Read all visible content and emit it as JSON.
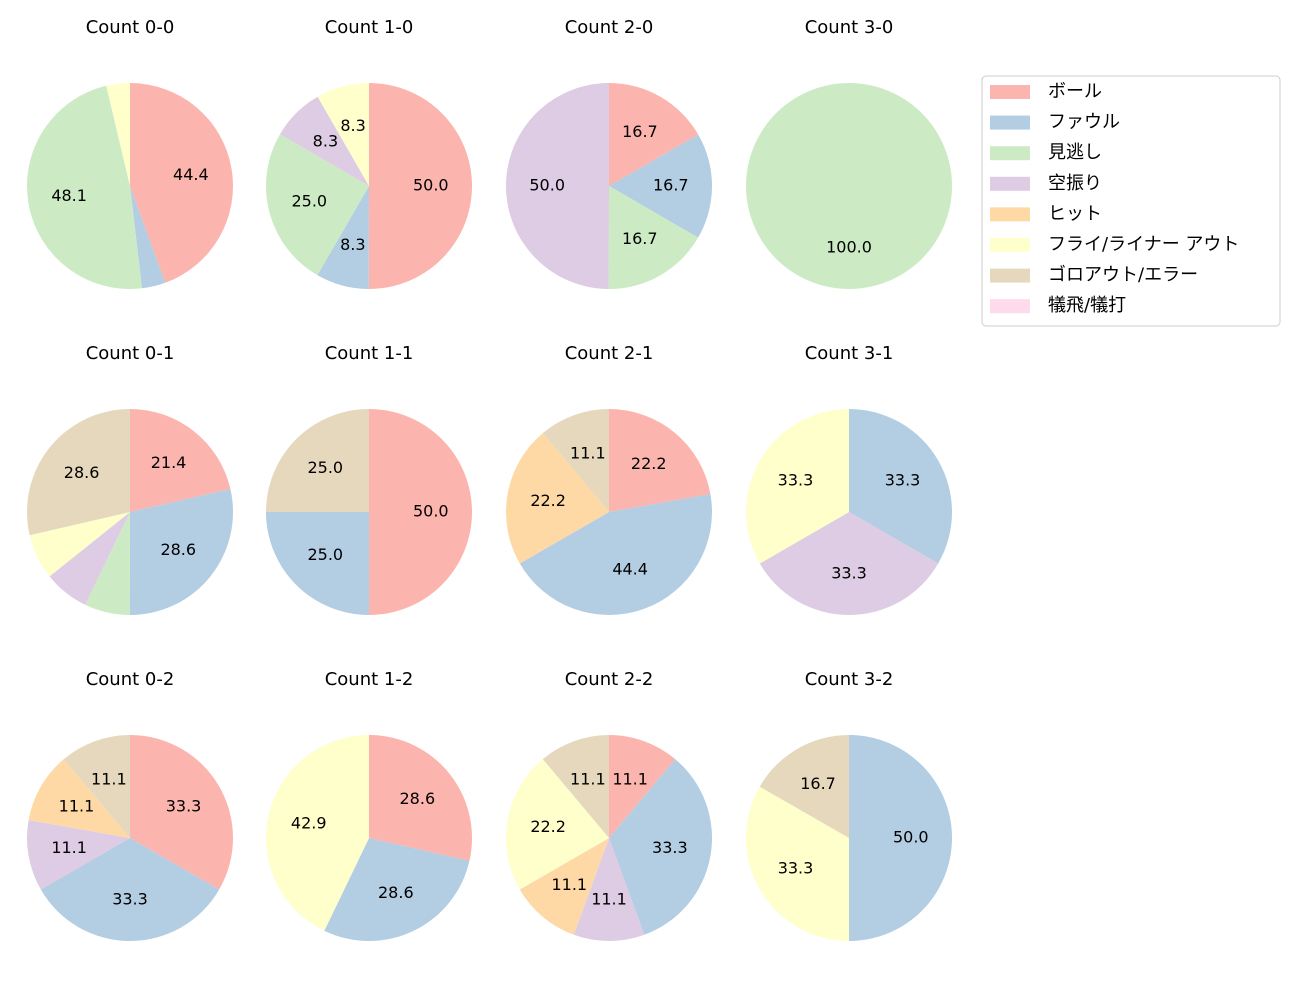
{
  "chart_data": [
    {
      "type": "pie",
      "title": "Count 0-0",
      "values": [
        44.4,
        3.7,
        48.1,
        0,
        0,
        3.7,
        0,
        0
      ],
      "value_labels": [
        "44.4",
        null,
        "48.1",
        null,
        null,
        null,
        null,
        null
      ]
    },
    {
      "type": "pie",
      "title": "Count 1-0",
      "values": [
        50,
        8.3,
        25,
        8.3,
        0,
        8.3,
        0,
        0
      ],
      "value_labels": [
        "50.0",
        "8.3",
        "25.0",
        "8.3",
        null,
        "8.3",
        null,
        null
      ]
    },
    {
      "type": "pie",
      "title": "Count 2-0",
      "values": [
        16.7,
        16.7,
        16.7,
        50,
        0,
        0,
        0,
        0
      ],
      "value_labels": [
        "16.7",
        "16.7",
        "16.7",
        "50.0",
        null,
        null,
        null,
        null
      ]
    },
    {
      "type": "pie",
      "title": "Count 3-0",
      "values": [
        0,
        0,
        100,
        0,
        0,
        0,
        0,
        0
      ],
      "value_labels": [
        null,
        null,
        "100.0",
        null,
        null,
        null,
        null,
        null
      ]
    },
    {
      "type": "pie",
      "title": "Count 0-1",
      "values": [
        21.4,
        28.6,
        7.1,
        7.1,
        0,
        7.1,
        28.6,
        0
      ],
      "value_labels": [
        "21.4",
        "28.6",
        null,
        null,
        null,
        null,
        "28.6",
        null
      ]
    },
    {
      "type": "pie",
      "title": "Count 1-1",
      "values": [
        50,
        25,
        0,
        0,
        0,
        0,
        25,
        0
      ],
      "value_labels": [
        "50.0",
        "25.0",
        null,
        null,
        null,
        null,
        "25.0",
        null
      ]
    },
    {
      "type": "pie",
      "title": "Count 2-1",
      "values": [
        22.2,
        44.4,
        0,
        0,
        22.2,
        0,
        11.1,
        0
      ],
      "value_labels": [
        "22.2",
        "44.4",
        null,
        null,
        "22.2",
        null,
        "11.1",
        null
      ]
    },
    {
      "type": "pie",
      "title": "Count 3-1",
      "values": [
        0,
        33.3,
        0,
        33.3,
        0,
        33.3,
        0,
        0
      ],
      "value_labels": [
        null,
        "33.3",
        null,
        "33.3",
        null,
        "33.3",
        null,
        null
      ]
    },
    {
      "type": "pie",
      "title": "Count 0-2",
      "values": [
        33.3,
        33.3,
        0,
        11.1,
        11.1,
        0,
        11.1,
        0
      ],
      "value_labels": [
        "33.3",
        "33.3",
        null,
        "11.1",
        "11.1",
        null,
        "11.1",
        null
      ]
    },
    {
      "type": "pie",
      "title": "Count 1-2",
      "values": [
        28.6,
        28.6,
        0,
        0,
        0,
        42.9,
        0,
        0
      ],
      "value_labels": [
        "28.6",
        "28.6",
        null,
        null,
        null,
        "42.9",
        null,
        null
      ]
    },
    {
      "type": "pie",
      "title": "Count 2-2",
      "values": [
        11.1,
        33.3,
        0,
        11.1,
        11.1,
        22.2,
        11.1,
        0
      ],
      "value_labels": [
        "11.1",
        "33.3",
        null,
        "11.1",
        "11.1",
        "22.2",
        "11.1",
        null
      ]
    },
    {
      "type": "pie",
      "title": "Count 3-2",
      "values": [
        0,
        50,
        0,
        0,
        0,
        33.3,
        16.7,
        0
      ],
      "value_labels": [
        null,
        "50.0",
        null,
        null,
        null,
        "33.3",
        "16.7",
        null
      ]
    }
  ],
  "legend": {
    "labels": [
      "ボール",
      "ファウル",
      "見逃し",
      "空振り",
      "ヒット",
      "フライ/ライナー アウト",
      "ゴロアウト/エラー",
      "犠飛/犠打"
    ],
    "colors": [
      "#fbb4ae",
      "#b3cde3",
      "#ccebc5",
      "#decbe4",
      "#fed9a6",
      "#ffffcc",
      "#e5d8bd",
      "#fddaec"
    ],
    "loc": "upper right"
  }
}
